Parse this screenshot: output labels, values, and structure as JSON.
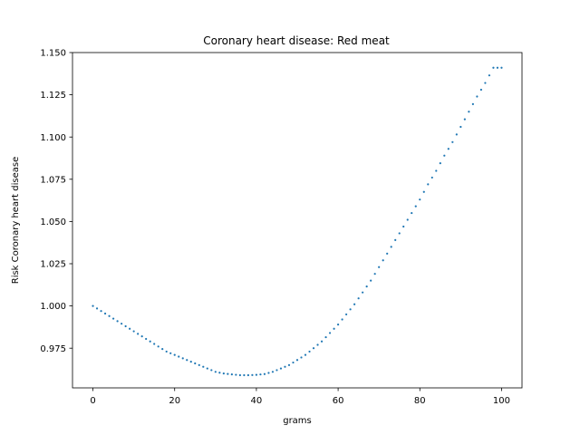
{
  "chart_data": {
    "type": "scatter",
    "title": "Coronary heart disease: Red meat",
    "xlabel": "grams",
    "ylabel": "Risk Coronary heart disease",
    "xlim": [
      -5,
      105
    ],
    "ylim": [
      0.9515,
      1.15
    ],
    "xticks": [
      0,
      20,
      40,
      60,
      80,
      100
    ],
    "xtick_labels": [
      "0",
      "20",
      "40",
      "60",
      "80",
      "100"
    ],
    "yticks": [
      0.975,
      1.0,
      1.025,
      1.05,
      1.075,
      1.1,
      1.125,
      1.15
    ],
    "ytick_labels": [
      "0.975",
      "1.000",
      "1.025",
      "1.050",
      "1.075",
      "1.100",
      "1.125",
      "1.150"
    ],
    "grid": false,
    "marker_color": "#1f77b4",
    "series": [
      {
        "x": [
          0,
          2,
          4,
          6,
          8,
          10,
          12,
          14,
          16,
          18,
          20,
          22,
          24,
          26,
          28,
          30,
          32,
          34,
          36,
          38,
          40,
          42,
          44,
          46,
          48,
          50,
          52,
          54,
          56,
          58,
          60,
          62,
          64,
          66,
          68,
          70,
          72,
          74,
          76,
          78,
          80,
          82,
          84,
          86,
          88,
          90,
          92,
          94,
          96,
          98,
          100
        ],
        "y": [
          1.0,
          0.997,
          0.994,
          0.991,
          0.988,
          0.985,
          0.982,
          0.979,
          0.976,
          0.973,
          0.971,
          0.969,
          0.967,
          0.965,
          0.963,
          0.961,
          0.96,
          0.9595,
          0.959,
          0.959,
          0.9592,
          0.9597,
          0.961,
          0.963,
          0.965,
          0.968,
          0.971,
          0.975,
          0.979,
          0.984,
          0.989,
          0.995,
          1.001,
          1.008,
          1.015,
          1.023,
          1.031,
          1.039,
          1.047,
          1.055,
          1.063,
          1.072,
          1.08,
          1.089,
          1.097,
          1.106,
          1.115,
          1.124,
          1.132,
          1.141,
          1.141
        ]
      }
    ]
  }
}
